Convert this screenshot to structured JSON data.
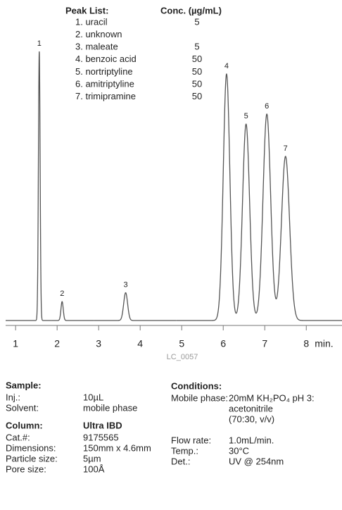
{
  "chart_data": {
    "type": "chromatogram",
    "peak_list_title": "Peak List:",
    "conc_title": "Conc. (µg/mL)",
    "peaks": [
      {
        "label": "1",
        "name": "1. uracil",
        "conc": 5,
        "time": 1.57,
        "height": 96.7
      },
      {
        "label": "2",
        "name": "2. unknown",
        "conc": null,
        "time": 2.12,
        "height": 6.8
      },
      {
        "label": "3",
        "name": "3. maleate",
        "conc": 5,
        "time": 3.65,
        "height": 10
      },
      {
        "label": "4",
        "name": "4. benzoic acid",
        "conc": 50,
        "time": 6.08,
        "height": 88.6
      },
      {
        "label": "5",
        "name": "5. nortriptyline",
        "conc": 50,
        "time": 6.55,
        "height": 70.6
      },
      {
        "label": "6",
        "name": "6. amitriptyline",
        "conc": 50,
        "time": 7.05,
        "height": 74.2
      },
      {
        "label": "7",
        "name": "7. trimipramine",
        "conc": 50,
        "time": 7.5,
        "height": 59
      }
    ],
    "xlim": [
      0.76,
      8.86
    ],
    "xticks": [
      1,
      2,
      3,
      4,
      5,
      6,
      7,
      8
    ],
    "x_unit": "min.",
    "ylim": [
      0,
      100
    ],
    "color": "#555555",
    "note": "LC_0057"
  },
  "info": {
    "sample": {
      "title": "Sample:",
      "rows": [
        [
          "Inj.:",
          "10µL"
        ],
        [
          "Solvent:",
          "mobile phase"
        ]
      ]
    },
    "column": {
      "title": "Column:",
      "name": "Ultra IBD",
      "rows": [
        [
          "Cat.#:",
          "9175565"
        ],
        [
          "Dimensions:",
          "150mm x 4.6mm"
        ],
        [
          "Particle size:",
          "5µm"
        ],
        [
          "Pore size:",
          "100Å"
        ]
      ]
    },
    "conditions": {
      "title": "Conditions:",
      "rows": [
        [
          "Mobile phase:",
          "20mM KH₂PO₄ pH 3:"
        ],
        [
          "",
          "acetonitrile"
        ],
        [
          "",
          "(70:30, v/v)"
        ],
        [
          "Flow rate:",
          "1.0mL/min."
        ],
        [
          "Temp.:",
          "30°C"
        ],
        [
          "Det.:",
          "UV @ 254nm"
        ]
      ]
    }
  }
}
